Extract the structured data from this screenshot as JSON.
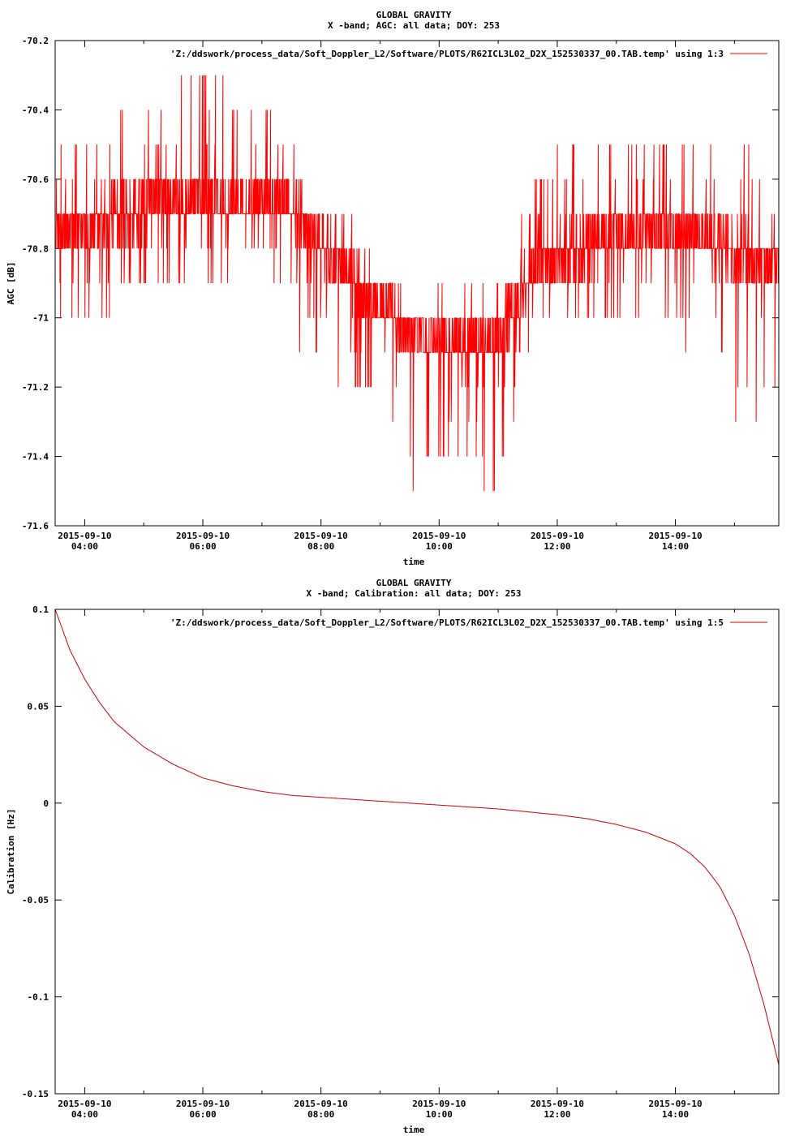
{
  "chart_data": [
    {
      "type": "line",
      "title": "GLOBAL GRAVITY",
      "subtitle": "X -band; AGC: all data; DOY: 253",
      "xlabel": "time",
      "ylabel": "AGC [dB]",
      "x_range": [
        "2015-09-10 03:30",
        "2015-09-10 15:45"
      ],
      "ylim": [
        -71.6,
        -70.2
      ],
      "yticks": [
        -70.2,
        -70.4,
        -70.6,
        -70.8,
        -71,
        -71.2,
        -71.4,
        -71.6
      ],
      "ytick_labels": [
        "-70.2",
        "-70.4",
        "-70.6",
        "-70.8",
        "-71",
        "-71.2",
        "-71.4",
        "-71.6"
      ],
      "xticks": [
        "04:00",
        "06:00",
        "08:00",
        "10:00",
        "12:00",
        "14:00"
      ],
      "xtick_date": "2015-09-10",
      "xtick_labels": [
        "04:00",
        "06:00",
        "08:00",
        "10:00",
        "12:00",
        "14:00"
      ],
      "grid": false,
      "legend_position": "top-right",
      "color": "#ff0000",
      "series": [
        {
          "name": "'Z:/ddswork/process_data/Soft_Doppler_L2/Software/PLOTS/R62ICL3L02_D2X_152530337_00.TAB.temp' using 1:3",
          "resolution_dB": 0.1,
          "envelope": {
            "x": [
              "03:30",
              "04:00",
              "05:00",
              "06:00",
              "07:00",
              "07:30",
              "08:00",
              "08:30",
              "09:00",
              "09:30",
              "10:00",
              "10:30",
              "11:00",
              "11:30",
              "12:00",
              "13:00",
              "14:00",
              "15:00",
              "15:45"
            ],
            "center": [
              -70.75,
              -70.73,
              -70.68,
              -70.66,
              -70.66,
              -70.67,
              -70.79,
              -70.88,
              -70.96,
              -71.04,
              -71.07,
              -71.09,
              -71.05,
              -70.88,
              -70.81,
              -70.77,
              -70.75,
              -70.81,
              -70.84
            ],
            "upper": [
              -70.5,
              -70.5,
              -70.4,
              -70.3,
              -70.4,
              -70.5,
              -70.7,
              -70.7,
              -70.9,
              -71.0,
              -70.9,
              -70.9,
              -70.9,
              -70.7,
              -70.5,
              -70.5,
              -70.5,
              -70.5,
              -70.5
            ],
            "lower": [
              -71.0,
              -71.0,
              -70.9,
              -70.9,
              -70.8,
              -71.1,
              -71.1,
              -71.2,
              -71.2,
              -71.5,
              -71.4,
              -71.4,
              -71.5,
              -71.1,
              -71.0,
              -71.0,
              -71.0,
              -71.3,
              -71.2
            ]
          }
        }
      ]
    },
    {
      "type": "line",
      "title": "GLOBAL GRAVITY",
      "subtitle": "X -band; Calibration: all data; DOY: 253",
      "xlabel": "time",
      "ylabel": "Calibration [Hz]",
      "x_range": [
        "2015-09-10 03:30",
        "2015-09-10 15:45"
      ],
      "ylim": [
        -0.15,
        0.1
      ],
      "yticks": [
        0.1,
        0.05,
        0,
        -0.05,
        -0.1,
        -0.15
      ],
      "ytick_labels": [
        "0.1",
        "0.05",
        "0",
        "-0.05",
        "-0.1",
        "-0.15"
      ],
      "xticks": [
        "04:00",
        "06:00",
        "08:00",
        "10:00",
        "12:00",
        "14:00"
      ],
      "xtick_date": "2015-09-10",
      "xtick_labels": [
        "04:00",
        "06:00",
        "08:00",
        "10:00",
        "12:00",
        "14:00"
      ],
      "grid": false,
      "legend_position": "top-right",
      "color": "#cc0000",
      "series": [
        {
          "name": "'Z:/ddswork/process_data/Soft_Doppler_L2/Software/PLOTS/R62ICL3L02_D2X_152530337_00.TAB.temp' using 1:5",
          "x": [
            "03:30",
            "03:45",
            "04:00",
            "04:15",
            "04:30",
            "05:00",
            "05:30",
            "06:00",
            "06:30",
            "07:00",
            "07:30",
            "08:00",
            "09:00",
            "10:00",
            "11:00",
            "12:00",
            "12:30",
            "13:00",
            "13:30",
            "14:00",
            "14:15",
            "14:30",
            "14:45",
            "15:00",
            "15:15",
            "15:30",
            "15:45"
          ],
          "values": [
            0.1,
            0.079,
            0.064,
            0.052,
            0.042,
            0.029,
            0.02,
            0.013,
            0.009,
            0.006,
            0.004,
            0.003,
            0.001,
            -0.001,
            -0.003,
            -0.006,
            -0.008,
            -0.011,
            -0.015,
            -0.021,
            -0.026,
            -0.033,
            -0.043,
            -0.058,
            -0.078,
            -0.104,
            -0.135
          ]
        }
      ]
    }
  ]
}
